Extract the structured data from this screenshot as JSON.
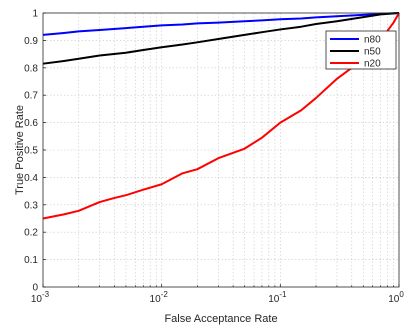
{
  "chart_data": {
    "type": "line",
    "xscale": "log",
    "xlabel": "False Acceptance Rate",
    "ylabel": "True Positive Rate",
    "xlim": [
      0.001,
      1
    ],
    "ylim": [
      0,
      1
    ],
    "grid": true,
    "legend_position": "top-right",
    "x_ticks": [
      {
        "value": 0.001,
        "base": "10",
        "exp": "-3"
      },
      {
        "value": 0.01,
        "base": "10",
        "exp": "-2"
      },
      {
        "value": 0.1,
        "base": "10",
        "exp": "-1"
      },
      {
        "value": 1,
        "base": "10",
        "exp": "0"
      }
    ],
    "y_ticks": [
      "0",
      "0.1",
      "0.2",
      "0.3",
      "0.4",
      "0.5",
      "0.6",
      "0.7",
      "0.8",
      "0.9",
      "1"
    ],
    "series": [
      {
        "name": "n80",
        "color": "#0000ff",
        "x": [
          0.001,
          0.0015,
          0.002,
          0.003,
          0.005,
          0.007,
          0.01,
          0.015,
          0.02,
          0.03,
          0.05,
          0.07,
          0.1,
          0.15,
          0.2,
          0.3,
          0.5,
          0.7,
          1
        ],
        "y": [
          0.92,
          0.927,
          0.933,
          0.938,
          0.945,
          0.95,
          0.955,
          0.958,
          0.962,
          0.965,
          0.97,
          0.973,
          0.977,
          0.98,
          0.984,
          0.988,
          0.993,
          0.997,
          1.0
        ]
      },
      {
        "name": "n50",
        "color": "#000000",
        "x": [
          0.001,
          0.0015,
          0.002,
          0.003,
          0.005,
          0.007,
          0.01,
          0.015,
          0.02,
          0.03,
          0.05,
          0.07,
          0.1,
          0.15,
          0.2,
          0.3,
          0.5,
          0.7,
          1
        ],
        "y": [
          0.815,
          0.825,
          0.833,
          0.845,
          0.855,
          0.865,
          0.875,
          0.885,
          0.893,
          0.905,
          0.92,
          0.93,
          0.94,
          0.95,
          0.96,
          0.97,
          0.985,
          0.995,
          1.0
        ]
      },
      {
        "name": "n20",
        "color": "#ff0000",
        "x": [
          0.001,
          0.0015,
          0.002,
          0.003,
          0.004,
          0.005,
          0.007,
          0.01,
          0.015,
          0.02,
          0.03,
          0.05,
          0.07,
          0.1,
          0.15,
          0.2,
          0.3,
          0.4,
          0.5,
          0.6,
          0.7,
          0.8,
          0.9,
          1
        ],
        "y": [
          0.25,
          0.265,
          0.278,
          0.31,
          0.325,
          0.335,
          0.355,
          0.375,
          0.415,
          0.43,
          0.47,
          0.505,
          0.545,
          0.6,
          0.645,
          0.69,
          0.76,
          0.8,
          0.84,
          0.87,
          0.905,
          0.935,
          0.965,
          1.0
        ]
      }
    ]
  }
}
